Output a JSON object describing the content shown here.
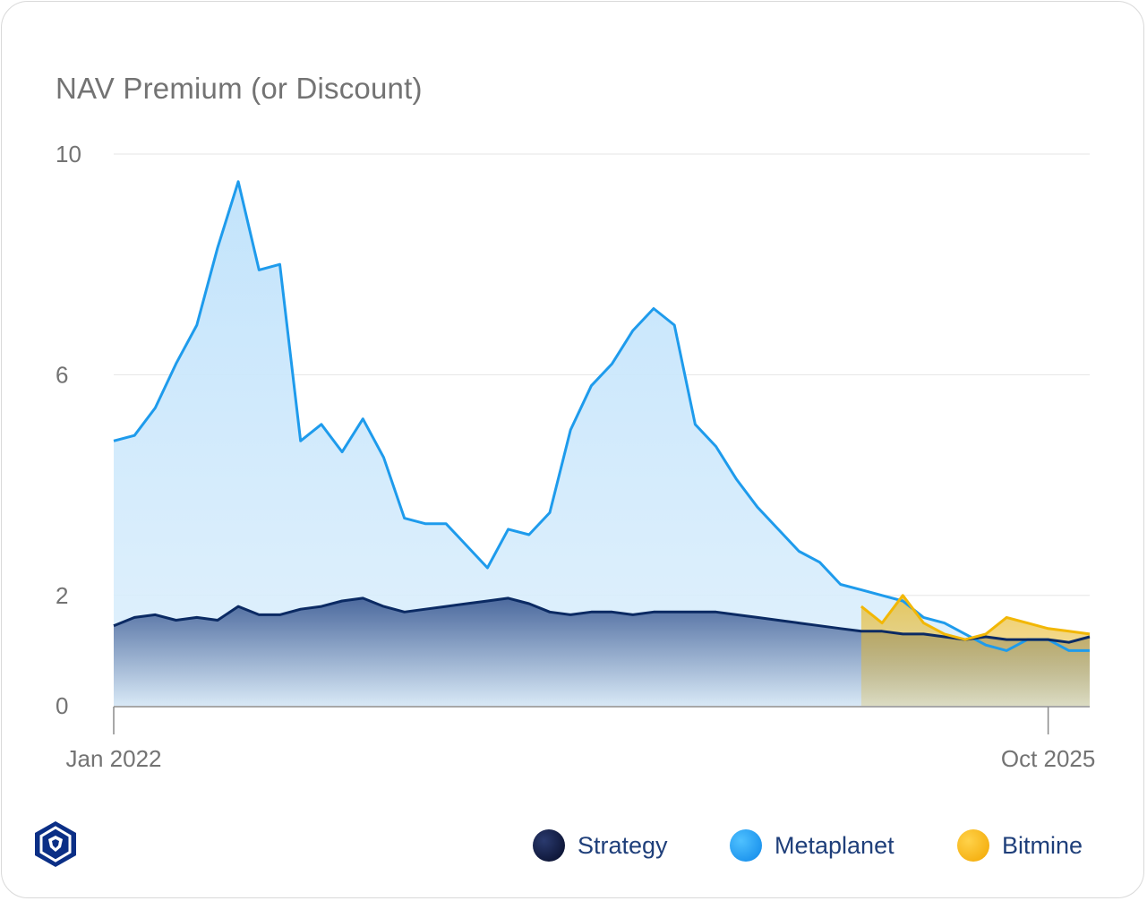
{
  "title": "NAV Premium (or Discount)",
  "colors": {
    "strategy": "#0b2a63",
    "metaplanet": "#1e9bec",
    "bitmine": "#f2b705",
    "axis_text": "#737373",
    "legend_text": "#1f3f7a"
  },
  "legend": [
    {
      "name": "Strategy",
      "icon": "strategy-dot"
    },
    {
      "name": "Metaplanet",
      "icon": "metaplanet-dot"
    },
    {
      "name": "Bitmine",
      "icon": "bitmine-dot"
    }
  ],
  "logo": {
    "icon": "crypto-com-logo-icon"
  },
  "chart_data": {
    "type": "area",
    "title": "NAV Premium (or Discount)",
    "xlabel": "",
    "ylabel": "",
    "x_ticks": [
      "Jan 2022",
      "Oct 2025"
    ],
    "y_ticks": [
      "10",
      "6",
      "2",
      "0"
    ],
    "ylim": [
      0,
      10
    ],
    "xlim": [
      "2022-01",
      "2025-12"
    ],
    "grid": true,
    "legend_position": "bottom-right",
    "series": [
      {
        "name": "Metaplanet",
        "x": [
          "2022-01",
          "2022-02",
          "2022-03",
          "2022-04",
          "2022-05",
          "2022-06",
          "2022-07",
          "2022-08",
          "2022-09",
          "2022-10",
          "2022-11",
          "2022-12",
          "2023-01",
          "2023-02",
          "2023-03",
          "2023-04",
          "2023-05",
          "2023-06",
          "2023-07",
          "2023-08",
          "2023-09",
          "2023-10",
          "2023-11",
          "2023-12",
          "2024-01",
          "2024-02",
          "2024-03",
          "2024-04",
          "2024-05",
          "2024-06",
          "2024-07",
          "2024-08",
          "2024-09",
          "2024-10",
          "2024-11",
          "2024-12",
          "2025-01",
          "2025-02",
          "2025-03",
          "2025-04",
          "2025-05",
          "2025-06",
          "2025-07",
          "2025-08",
          "2025-09",
          "2025-10",
          "2025-11",
          "2025-12"
        ],
        "values": [
          4.8,
          4.9,
          5.4,
          6.2,
          6.9,
          8.3,
          9.5,
          7.9,
          8.0,
          4.8,
          5.1,
          4.6,
          5.2,
          4.5,
          3.4,
          3.3,
          3.3,
          2.9,
          2.5,
          3.2,
          3.1,
          3.5,
          5.0,
          5.8,
          6.2,
          6.8,
          7.2,
          6.9,
          5.1,
          4.7,
          4.1,
          3.6,
          3.2,
          2.8,
          2.6,
          2.2,
          2.1,
          2.0,
          1.9,
          1.6,
          1.5,
          1.3,
          1.1,
          1.0,
          1.2,
          1.2,
          1.0,
          1.0
        ]
      },
      {
        "name": "Strategy",
        "x": [
          "2022-01",
          "2022-02",
          "2022-03",
          "2022-04",
          "2022-05",
          "2022-06",
          "2022-07",
          "2022-08",
          "2022-09",
          "2022-10",
          "2022-11",
          "2022-12",
          "2023-01",
          "2023-02",
          "2023-03",
          "2023-04",
          "2023-05",
          "2023-06",
          "2023-07",
          "2023-08",
          "2023-09",
          "2023-10",
          "2023-11",
          "2023-12",
          "2024-01",
          "2024-02",
          "2024-03",
          "2024-04",
          "2024-05",
          "2024-06",
          "2024-07",
          "2024-08",
          "2024-09",
          "2024-10",
          "2024-11",
          "2024-12",
          "2025-01",
          "2025-02",
          "2025-03",
          "2025-04",
          "2025-05",
          "2025-06",
          "2025-07",
          "2025-08",
          "2025-09",
          "2025-10",
          "2025-11",
          "2025-12"
        ],
        "values": [
          1.45,
          1.6,
          1.65,
          1.55,
          1.6,
          1.55,
          1.8,
          1.65,
          1.65,
          1.75,
          1.8,
          1.9,
          1.95,
          1.8,
          1.7,
          1.75,
          1.8,
          1.85,
          1.9,
          1.95,
          1.85,
          1.7,
          1.65,
          1.7,
          1.7,
          1.65,
          1.7,
          1.7,
          1.7,
          1.7,
          1.65,
          1.6,
          1.55,
          1.5,
          1.45,
          1.4,
          1.35,
          1.35,
          1.3,
          1.3,
          1.25,
          1.2,
          1.25,
          1.2,
          1.2,
          1.2,
          1.15,
          1.25
        ]
      },
      {
        "name": "Bitmine",
        "x": [
          "2025-01",
          "2025-02",
          "2025-03",
          "2025-04",
          "2025-05",
          "2025-06",
          "2025-07",
          "2025-08",
          "2025-09",
          "2025-10",
          "2025-11",
          "2025-12"
        ],
        "values": [
          1.8,
          1.5,
          2.0,
          1.5,
          1.3,
          1.2,
          1.3,
          1.6,
          1.5,
          1.4,
          1.35,
          1.3
        ]
      }
    ]
  }
}
